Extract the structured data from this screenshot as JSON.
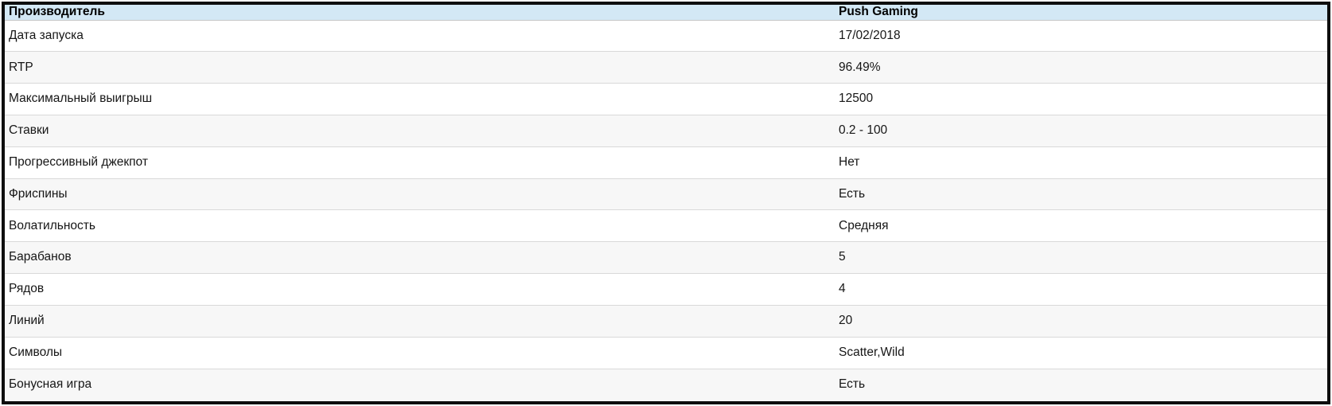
{
  "table": {
    "header": {
      "label": "Производитель",
      "value": "Push Gaming"
    },
    "rows": [
      {
        "label": "Дата запуска",
        "value": "17/02/2018"
      },
      {
        "label": "RTP",
        "value": "96.49%"
      },
      {
        "label": "Максимальный выигрыш",
        "value": "12500"
      },
      {
        "label": "Ставки",
        "value": "0.2 - 100"
      },
      {
        "label": "Прогрессивный джекпот",
        "value": "Нет"
      },
      {
        "label": "Фриспины",
        "value": "Есть"
      },
      {
        "label": "Волатильность",
        "value": "Средняя"
      },
      {
        "label": "Барабанов",
        "value": "5"
      },
      {
        "label": "Рядов",
        "value": "4"
      },
      {
        "label": "Линий",
        "value": "20"
      },
      {
        "label": "Символы",
        "value": "Scatter,Wild"
      },
      {
        "label": "Бонусная игра",
        "value": "Есть"
      }
    ],
    "colors": {
      "header_bg": "#d3e8f5",
      "row_bg": "#ffffff",
      "row_alt_bg": "#f7f7f7",
      "separator": "#d9d9d9",
      "frame_border": "#0e0e0e",
      "text": "#161616"
    }
  }
}
